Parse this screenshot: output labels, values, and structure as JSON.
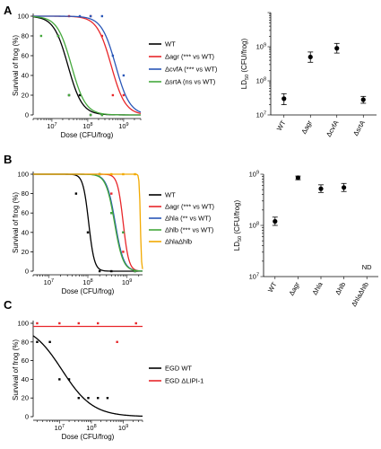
{
  "chart_data": [
    {
      "panel": "A",
      "type": "line",
      "xlabel": "Dose (CFU/frog)",
      "ylabel": "Survival of frog (%)",
      "xscale": "log",
      "x_ticks": [
        {
          "value": 10000000.0,
          "label": "10^7"
        },
        {
          "value": 100000000.0,
          "label": "10^8"
        },
        {
          "value": 1000000000.0,
          "label": "10^9"
        }
      ],
      "xlim": [
        3000000.0,
        3000000000.0
      ],
      "ylim": [
        0,
        100
      ],
      "y_ticks": [
        0,
        20,
        40,
        60,
        80,
        100
      ],
      "series": [
        {
          "name": "WT",
          "note": "",
          "color": "#000000",
          "points": [
            [
              15000000.0,
              80
            ],
            [
              30000000.0,
              20
            ],
            [
              60000000.0,
              20
            ],
            [
              120000000.0,
              0
            ],
            [
              250000000.0,
              0
            ]
          ],
          "curve_ld50": 28000000.0,
          "hill": 2.2
        },
        {
          "name": "Δagr",
          "note": "(*** vs WT)",
          "color": "#e8262a",
          "points": [
            [
              30000000.0,
              100
            ],
            [
              120000000.0,
              100
            ],
            [
              250000000.0,
              80
            ],
            [
              500000000.0,
              20
            ],
            [
              1000000000.0,
              20
            ]
          ],
          "curve_ld50": 450000000.0,
          "hill": 2.2
        },
        {
          "name": "ΔcvfA",
          "note": "(*** vs WT)",
          "color": "#2a57b8",
          "points": [
            [
              60000000.0,
              100
            ],
            [
              120000000.0,
              100
            ],
            [
              250000000.0,
              100
            ],
            [
              500000000.0,
              60
            ],
            [
              1000000000.0,
              40
            ]
          ],
          "curve_ld50": 600000000.0,
          "hill": 2.2
        },
        {
          "name": "ΔsrtA",
          "note": "(ns vs WT)",
          "color": "#44a83c",
          "points": [
            [
              5000000.0,
              80
            ],
            [
              15000000.0,
              80
            ],
            [
              30000000.0,
              20
            ],
            [
              120000000.0,
              0
            ],
            [
              250000000.0,
              0
            ]
          ],
          "curve_ld50": 35000000.0,
          "hill": 2.2
        }
      ]
    },
    {
      "panel": "A-right",
      "type": "scatter",
      "ylabel": "LD50 (CFU/frog)",
      "yscale": "log",
      "ylim": [
        10000000.0,
        10000000000.0
      ],
      "y_ticks": [
        {
          "value": 10000000.0,
          "label": "10^7"
        },
        {
          "value": 100000000.0,
          "label": "10^8"
        },
        {
          "value": 1000000000.0,
          "label": "10^9"
        }
      ],
      "categories": [
        "WT",
        "Δagr",
        "ΔcvfA",
        "ΔsrtA"
      ],
      "values": [
        30000000.0,
        500000000.0,
        900000000.0,
        28000000.0
      ],
      "err_low": [
        20000000.0,
        350000000.0,
        650000000.0,
        22000000.0
      ],
      "err_high": [
        42000000.0,
        700000000.0,
        1250000000.0,
        35000000.0
      ]
    },
    {
      "panel": "B",
      "type": "line",
      "xlabel": "Dose (CFU/frog)",
      "ylabel": "Survival of frog (%)",
      "xscale": "log",
      "x_ticks": [
        {
          "value": 10000000.0,
          "label": "10^7"
        },
        {
          "value": 100000000.0,
          "label": "10^8"
        },
        {
          "value": 1000000000.0,
          "label": "10^9"
        }
      ],
      "xlim": [
        4000000.0,
        2500000000.0
      ],
      "ylim": [
        0,
        100
      ],
      "y_ticks": [
        0,
        20,
        40,
        60,
        80,
        100
      ],
      "series": [
        {
          "name": "WT",
          "note": "",
          "color": "#000000",
          "points": [
            [
              50000000.0,
              80
            ],
            [
              100000000.0,
              40
            ],
            [
              200000000.0,
              0
            ],
            [
              400000000.0,
              0
            ]
          ],
          "curve_ld50": 105000000.0,
          "hill": 6
        },
        {
          "name": "Δagr",
          "note": "(*** vs WT)",
          "color": "#e8262a",
          "points": [
            [
              200000000.0,
              100
            ],
            [
              400000000.0,
              80
            ],
            [
              800000000.0,
              20
            ],
            [
              1600000000.0,
              0
            ]
          ],
          "curve_ld50": 800000000.0,
          "hill": 6
        },
        {
          "name": "Δhla",
          "note": "(** vs WT)",
          "color": "#2a57b8",
          "points": [
            [
              200000000.0,
              100
            ],
            [
              400000000.0,
              60
            ],
            [
              800000000.0,
              40
            ],
            [
              1600000000.0,
              0
            ]
          ],
          "curve_ld50": 500000000.0,
          "hill": 4
        },
        {
          "name": "Δhlb",
          "note": "(*** vs WT)",
          "color": "#44a83c",
          "points": [
            [
              200000000.0,
              100
            ],
            [
              400000000.0,
              60
            ],
            [
              800000000.0,
              40
            ],
            [
              1600000000.0,
              0
            ]
          ],
          "curve_ld50": 480000000.0,
          "hill": 4
        },
        {
          "name": "ΔhlaΔhlb",
          "note": "",
          "color": "#f2a900",
          "points": [
            [
              200000000.0,
              100
            ],
            [
              400000000.0,
              100
            ],
            [
              800000000.0,
              100
            ],
            [
              1600000000.0,
              100
            ]
          ],
          "curve_ld50": 2200000000.0,
          "hill": 30
        }
      ]
    },
    {
      "panel": "B-right",
      "type": "scatter",
      "ylabel": "LD50 (CFU/frog)",
      "yscale": "log",
      "ylim": [
        10000000.0,
        1000000000.0
      ],
      "y_ticks": [
        {
          "value": 10000000.0,
          "label": "10^7"
        },
        {
          "value": 100000000.0,
          "label": "10^8"
        },
        {
          "value": 1000000000.0,
          "label": "10^9"
        }
      ],
      "categories": [
        "WT",
        "Δagr",
        "Δhla",
        "Δhlb",
        "ΔhlaΔhlb"
      ],
      "values": [
        120000000.0,
        850000000.0,
        520000000.0,
        550000000.0,
        null
      ],
      "err_low": [
        100000000.0,
        780000000.0,
        440000000.0,
        460000000.0,
        null
      ],
      "err_high": [
        145000000.0,
        920000000.0,
        620000000.0,
        660000000.0,
        null
      ],
      "annotation": "ND"
    },
    {
      "panel": "C",
      "type": "line",
      "xlabel": "Dose (CFU/frog)",
      "ylabel": "Survival of frog (%)",
      "xscale": "log",
      "x_ticks": [
        {
          "value": 10000000.0,
          "label": "10^7"
        },
        {
          "value": 100000000.0,
          "label": "10^8"
        },
        {
          "value": 1000000000.0,
          "label": "10^9"
        }
      ],
      "xlim": [
        1500000.0,
        4000000000.0
      ],
      "ylim": [
        0,
        100
      ],
      "y_ticks": [
        0,
        20,
        40,
        60,
        80,
        100
      ],
      "series": [
        {
          "name": "EGD WT",
          "note": "",
          "color": "#000000",
          "points": [
            [
              2000000.0,
              80
            ],
            [
              5000000.0,
              80
            ],
            [
              10000000.0,
              40
            ],
            [
              20000000.0,
              40
            ],
            [
              40000000.0,
              20
            ],
            [
              80000000.0,
              20
            ],
            [
              160000000.0,
              20
            ],
            [
              320000000.0,
              20
            ]
          ],
          "curve_ld50": 12000000.0,
          "hill": 0.9
        },
        {
          "name": "EGD ΔLIPI-1",
          "note": "",
          "color": "#e8262a",
          "points": [
            [
              2000000.0,
              100
            ],
            [
              10000000.0,
              100
            ],
            [
              40000000.0,
              100
            ],
            [
              160000000.0,
              100
            ],
            [
              640000000.0,
              80
            ],
            [
              2500000000.0,
              100
            ]
          ],
          "curve_ld50": null,
          "hill": null
        }
      ]
    }
  ],
  "panel_letters": [
    "A",
    "B",
    "C"
  ],
  "legend_a": {
    "items": [
      {
        "name": "WT",
        "note": "",
        "color": "#000000"
      },
      {
        "name": "Δagr",
        "note": "(*** vs WT)",
        "color": "#e8262a"
      },
      {
        "name": "ΔcvfA",
        "note": "(*** vs WT)",
        "color": "#2a57b8"
      },
      {
        "name": "ΔsrtA",
        "note": "(ns vs WT)",
        "color": "#44a83c"
      }
    ]
  },
  "legend_b": {
    "items": [
      {
        "name": "WT",
        "note": "",
        "color": "#000000"
      },
      {
        "name": "Δagr",
        "note": "(*** vs WT)",
        "color": "#e8262a"
      },
      {
        "name": "Δhla",
        "note": "(** vs WT)",
        "color": "#2a57b8"
      },
      {
        "name": "Δhlb",
        "note": "(*** vs WT)",
        "color": "#44a83c"
      },
      {
        "name": "ΔhlaΔhlb",
        "note": "",
        "color": "#f2a900"
      }
    ]
  },
  "legend_c": {
    "items": [
      {
        "name": "EGD WT",
        "note": "",
        "color": "#000000"
      },
      {
        "name": "EGD ΔLIPI-1",
        "note": "",
        "color": "#e8262a"
      }
    ]
  }
}
